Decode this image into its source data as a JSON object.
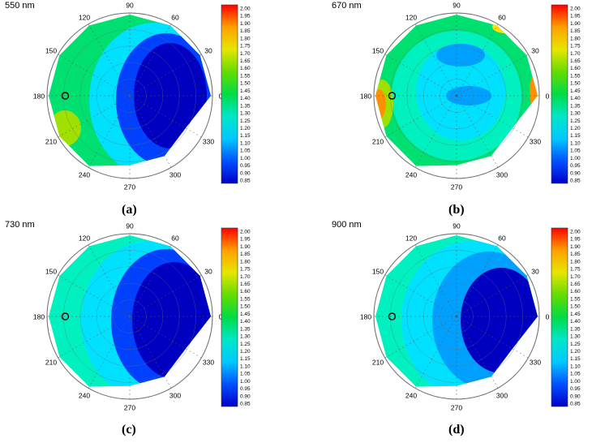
{
  "figure": {
    "angle_ticks": [
      "90",
      "60",
      "30",
      "0",
      "330",
      "300",
      "270",
      "240",
      "210",
      "180",
      "150",
      "120"
    ],
    "colorbar_ticks": [
      "2.00",
      "1.95",
      "1.90",
      "1.85",
      "1.80",
      "1.75",
      "1.70",
      "1.65",
      "1.60",
      "1.55",
      "1.50",
      "1.45",
      "1.40",
      "1.35",
      "1.30",
      "1.25",
      "1.20",
      "1.15",
      "1.10",
      "1.05",
      "1.00",
      "0.95",
      "0.90",
      "0.85"
    ],
    "colorbar_colors": [
      "#0000c8",
      "#0050ff",
      "#00c8ff",
      "#00e6c8",
      "#00dc46",
      "#64dc00",
      "#e6e600",
      "#ffa000",
      "#ff0000"
    ]
  },
  "chart_data": [
    {
      "type": "heatmap",
      "subtype": "polar",
      "title": "550 nm",
      "label": "(a)",
      "angular_ticks_deg": [
        90,
        60,
        30,
        0,
        330,
        300,
        270,
        240,
        210,
        180,
        150,
        120
      ],
      "color_range": [
        0.85,
        2.0
      ],
      "colorbar_ticks": [
        2.0,
        1.95,
        1.9,
        1.85,
        1.8,
        1.75,
        1.7,
        1.65,
        1.6,
        1.55,
        1.5,
        1.45,
        1.4,
        1.35,
        1.3,
        1.25,
        1.2,
        1.15,
        1.1,
        1.05,
        1.0,
        0.95,
        0.9,
        0.85
      ],
      "features": [
        {
          "region": "centre and 0-90 deg side",
          "approx_value": 1.0
        },
        {
          "region": "left side 120-240 deg",
          "approx_value": 1.5
        },
        {
          "region": "near 195-210 deg rim",
          "approx_value": 1.65
        }
      ],
      "marker": {
        "angle_deg": 180,
        "shape": "open circle"
      }
    },
    {
      "type": "heatmap",
      "subtype": "polar",
      "title": "670 nm",
      "label": "(b)",
      "angular_ticks_deg": [
        90,
        60,
        30,
        0,
        330,
        300,
        270,
        240,
        210,
        180,
        150,
        120
      ],
      "color_range": [
        0.85,
        2.0
      ],
      "colorbar_ticks": [
        2.0,
        1.95,
        1.9,
        1.85,
        1.8,
        1.75,
        1.7,
        1.65,
        1.6,
        1.55,
        1.5,
        1.45,
        1.4,
        1.35,
        1.3,
        1.25,
        1.2,
        1.15,
        1.1,
        1.05,
        1.0,
        0.95,
        0.9,
        0.85
      ],
      "features": [
        {
          "region": "centre",
          "approx_value": 1.15
        },
        {
          "region": "outer ring",
          "approx_value": 1.45
        },
        {
          "region": "near 180-195 deg rim",
          "approx_value": 1.85
        },
        {
          "region": "near 0 deg rim",
          "approx_value": 1.9
        },
        {
          "region": "near 60 deg rim",
          "approx_value": 1.75
        }
      ],
      "marker": {
        "angle_deg": 180,
        "shape": "open circle"
      }
    },
    {
      "type": "heatmap",
      "subtype": "polar",
      "title": "730 nm",
      "label": "(c)",
      "angular_ticks_deg": [
        90,
        60,
        30,
        0,
        330,
        300,
        270,
        240,
        210,
        180,
        150,
        120
      ],
      "color_range": [
        0.85,
        2.0
      ],
      "colorbar_ticks": [
        2.0,
        1.95,
        1.9,
        1.85,
        1.8,
        1.75,
        1.7,
        1.65,
        1.6,
        1.55,
        1.5,
        1.45,
        1.4,
        1.35,
        1.3,
        1.25,
        1.2,
        1.15,
        1.1,
        1.05,
        1.0,
        0.95,
        0.9,
        0.85
      ],
      "features": [
        {
          "region": "right half 300-60 deg",
          "approx_value": 0.9
        },
        {
          "region": "left side 120-240 deg",
          "approx_value": 1.35
        },
        {
          "region": "centre",
          "approx_value": 1.05
        }
      ],
      "marker": {
        "angle_deg": 180,
        "shape": "open circle"
      }
    },
    {
      "type": "heatmap",
      "subtype": "polar",
      "title": "900 nm",
      "label": "(d)",
      "angular_ticks_deg": [
        90,
        60,
        30,
        0,
        330,
        300,
        270,
        240,
        210,
        180,
        150,
        120
      ],
      "color_range": [
        0.85,
        2.0
      ],
      "colorbar_ticks": [
        2.0,
        1.95,
        1.9,
        1.85,
        1.8,
        1.75,
        1.7,
        1.65,
        1.6,
        1.55,
        1.5,
        1.45,
        1.4,
        1.35,
        1.3,
        1.25,
        1.2,
        1.15,
        1.1,
        1.05,
        1.0,
        0.95,
        0.9,
        0.85
      ],
      "features": [
        {
          "region": "right half 300-30 deg",
          "approx_value": 0.9
        },
        {
          "region": "left side 120-240 deg",
          "approx_value": 1.3
        },
        {
          "region": "centre",
          "approx_value": 1.1
        }
      ],
      "marker": {
        "angle_deg": 180,
        "shape": "open circle"
      }
    }
  ]
}
